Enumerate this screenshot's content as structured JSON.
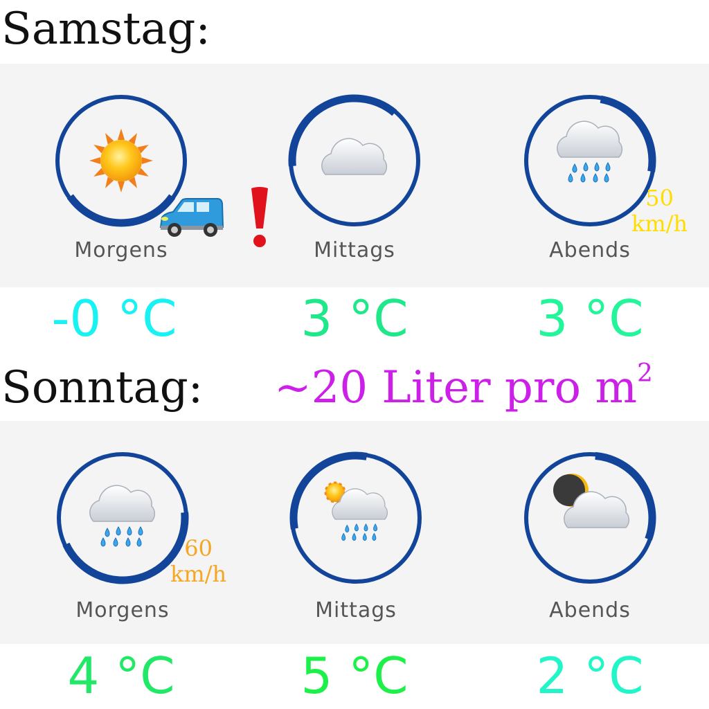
{
  "saturday": {
    "title": "Samstag:",
    "slots": [
      {
        "label": "Morgens",
        "icon": "sun-icon",
        "temp": "-0 °C",
        "temp_color": "#19f2f2"
      },
      {
        "label": "Mittags",
        "icon": "cloud-icon",
        "temp": "3 °C",
        "temp_color": "#1fe88a"
      },
      {
        "label": "Abends",
        "icon": "rain-cloud-icon",
        "temp": "3 °C",
        "temp_color": "#22f59a"
      }
    ],
    "wind": {
      "value": "50",
      "unit": "km/h",
      "color": "#ffdd00"
    },
    "warning": {
      "icons": [
        "car-icon",
        "exclamation-icon"
      ]
    }
  },
  "sunday": {
    "title": "Sonntag:",
    "rain_amount": "~20 Liter pro m",
    "rain_amount_sup": "2",
    "slots": [
      {
        "label": "Morgens",
        "icon": "rain-cloud-icon",
        "temp": "4 °C",
        "temp_color": "#22e868"
      },
      {
        "label": "Mittags",
        "icon": "sun-rain-cloud-icon",
        "temp": "5 °C",
        "temp_color": "#1ef04a"
      },
      {
        "label": "Abends",
        "icon": "moon-cloud-icon",
        "temp": "2 °C",
        "temp_color": "#22f5c8"
      }
    ],
    "wind": {
      "value": "60",
      "unit": "km/h",
      "color": "#f5a623"
    }
  },
  "colors": {
    "ring": "#12449a",
    "panel": "#f4f4f5",
    "rain_text": "#cc1fe8"
  }
}
